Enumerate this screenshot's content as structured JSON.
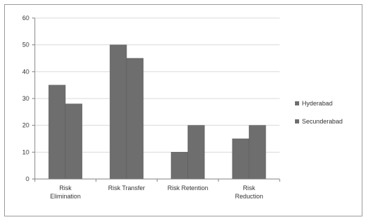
{
  "chart_data": {
    "type": "bar",
    "categories": [
      [
        "Risk",
        "Elimination"
      ],
      [
        "Risk Transfer"
      ],
      [
        "Risk Retention"
      ],
      [
        "Risk",
        "Reduction"
      ]
    ],
    "series": [
      {
        "name": "Hyderabad",
        "values": [
          35,
          50,
          10,
          15
        ],
        "color": "#6e6e6e"
      },
      {
        "name": "Secunderabad",
        "values": [
          28,
          45,
          20,
          20
        ],
        "color": "#6e6e6e"
      }
    ],
    "yticks": [
      "0",
      "10",
      "20",
      "30",
      "40",
      "50",
      "60"
    ],
    "ylim": [
      0,
      60
    ],
    "grid": true,
    "legend": "right",
    "gridColor": "#d9d9d9",
    "axisColor": "#808080"
  }
}
